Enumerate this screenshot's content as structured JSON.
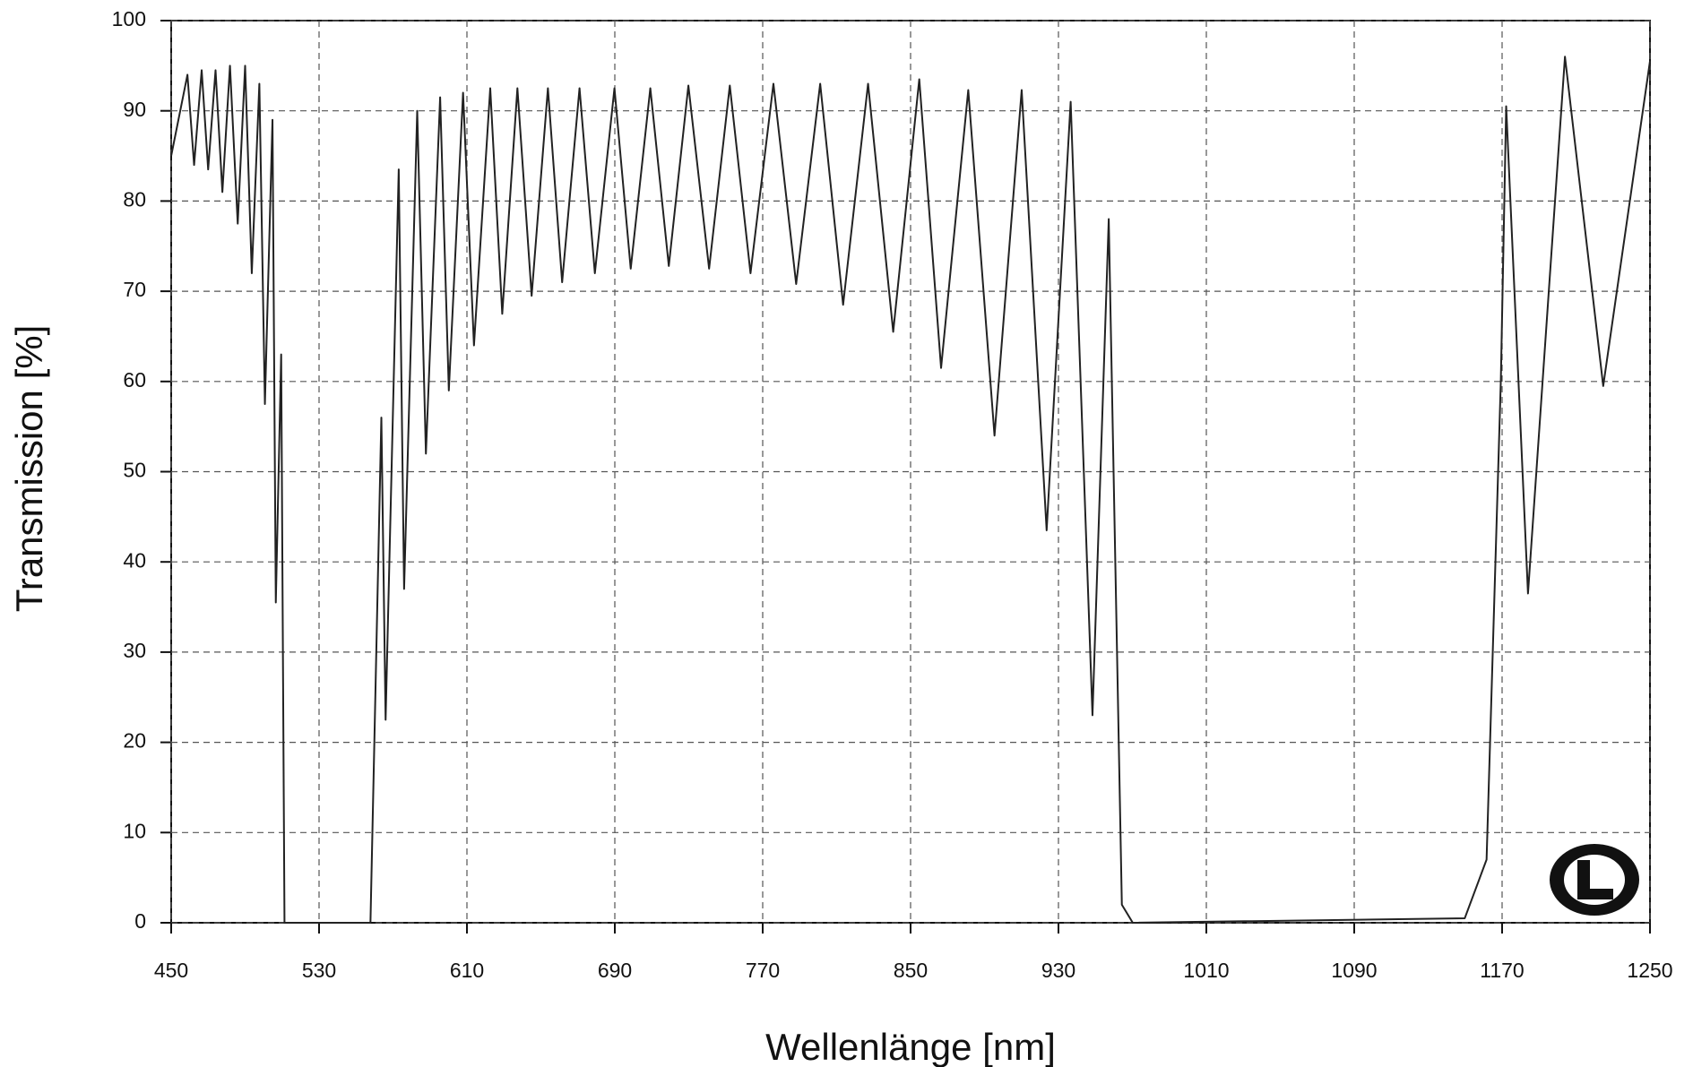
{
  "chart_data": {
    "type": "line",
    "x_label": "Wellenlänge [nm]",
    "y_label": "Transmission [%]",
    "color": "#222222",
    "grid": true,
    "xlim": [
      450,
      1250
    ],
    "ylim": [
      0,
      100
    ],
    "xticks": [
      450,
      530,
      610,
      690,
      770,
      850,
      930,
      1010,
      1090,
      1170,
      1250
    ],
    "yticks": [
      0,
      10,
      20,
      30,
      40,
      50,
      60,
      70,
      80,
      90,
      100
    ],
    "x": [
      450,
      458.8,
      462.4,
      466.5,
      470,
      474,
      477.7,
      481.8,
      486,
      490,
      493.6,
      497.7,
      500.7,
      504.8,
      506.6,
      509.5,
      511.3,
      557.8,
      563.7,
      566,
      573.1,
      576,
      583.1,
      587.8,
      595.5,
      600.2,
      607.9,
      613.8,
      622.6,
      629.1,
      637.3,
      645,
      653.8,
      661.5,
      670.9,
      679.2,
      689.8,
      698.6,
      709.2,
      719.2,
      729.8,
      741,
      752.2,
      763.4,
      775.8,
      788.1,
      801.1,
      813.5,
      827,
      840.6,
      854.7,
      866.5,
      881.2,
      895.4,
      910.1,
      923.6,
      936.6,
      948.4,
      957.2,
      964.3,
      970.2,
      1149.8,
      1161.6,
      1169.3,
      1172.2,
      1184,
      1204,
      1224.7,
      1250
    ],
    "values": [
      85,
      94,
      84,
      94.5,
      83.5,
      94.5,
      81,
      95,
      77.5,
      95,
      72,
      93,
      57.5,
      89,
      35.5,
      63,
      0,
      0,
      56,
      22.5,
      83.5,
      37,
      90,
      52,
      91.5,
      59,
      92,
      64,
      92.5,
      67.5,
      92.5,
      69.5,
      92.5,
      71,
      92.5,
      72,
      92.5,
      72.5,
      92.5,
      72.8,
      92.8,
      72.5,
      92.8,
      72,
      93,
      70.8,
      93,
      68.5,
      93,
      65.5,
      93.5,
      61.5,
      92.3,
      54,
      92.3,
      43.5,
      91,
      23,
      78,
      2,
      0,
      0.5,
      7,
      60,
      90.5,
      36.5,
      96,
      59.5,
      95.5
    ]
  }
}
